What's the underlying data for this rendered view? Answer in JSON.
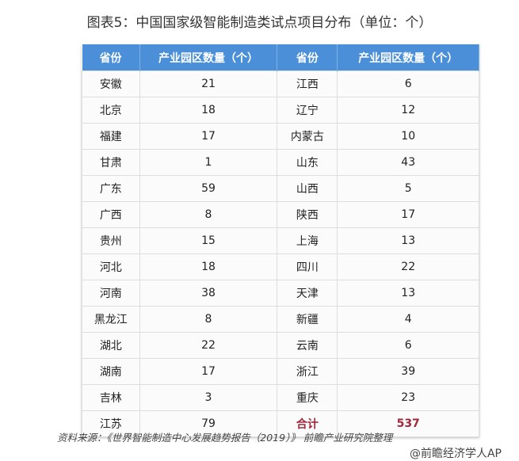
{
  "title": "图表5：中国国家级智能制造类试点项目分布（单位：个）",
  "headers": [
    "省份",
    "产业园区数量（个）",
    "省份",
    "产业园区数量（个）"
  ],
  "rows": [
    [
      "安徽",
      "21",
      "江西",
      "6"
    ],
    [
      "北京",
      "18",
      "辽宁",
      "12"
    ],
    [
      "福建",
      "17",
      "内蒙古",
      "10"
    ],
    [
      "甘肃",
      "1",
      "山东",
      "43"
    ],
    [
      "广东",
      "59",
      "山西",
      "5"
    ],
    [
      "广西",
      "8",
      "陕西",
      "17"
    ],
    [
      "贵州",
      "15",
      "上海",
      "13"
    ],
    [
      "河北",
      "18",
      "四川",
      "22"
    ],
    [
      "河南",
      "38",
      "天津",
      "13"
    ],
    [
      "黑龙江",
      "8",
      "新疆",
      "4"
    ],
    [
      "湖北",
      "22",
      "云南",
      "6"
    ],
    [
      "湖南",
      "17",
      "浙江",
      "39"
    ],
    [
      "吉林",
      "3",
      "重庆",
      "23"
    ],
    [
      "江苏",
      "79",
      "合计",
      "537"
    ]
  ],
  "source": "资料来源：《世界智能制造中心发展趋势报告（2019）》 前瞻产业研究院整理",
  "watermark": "@前瞻经济学人AP",
  "colors": {
    "header": "#4a8fd8",
    "total": "#a0283c"
  }
}
